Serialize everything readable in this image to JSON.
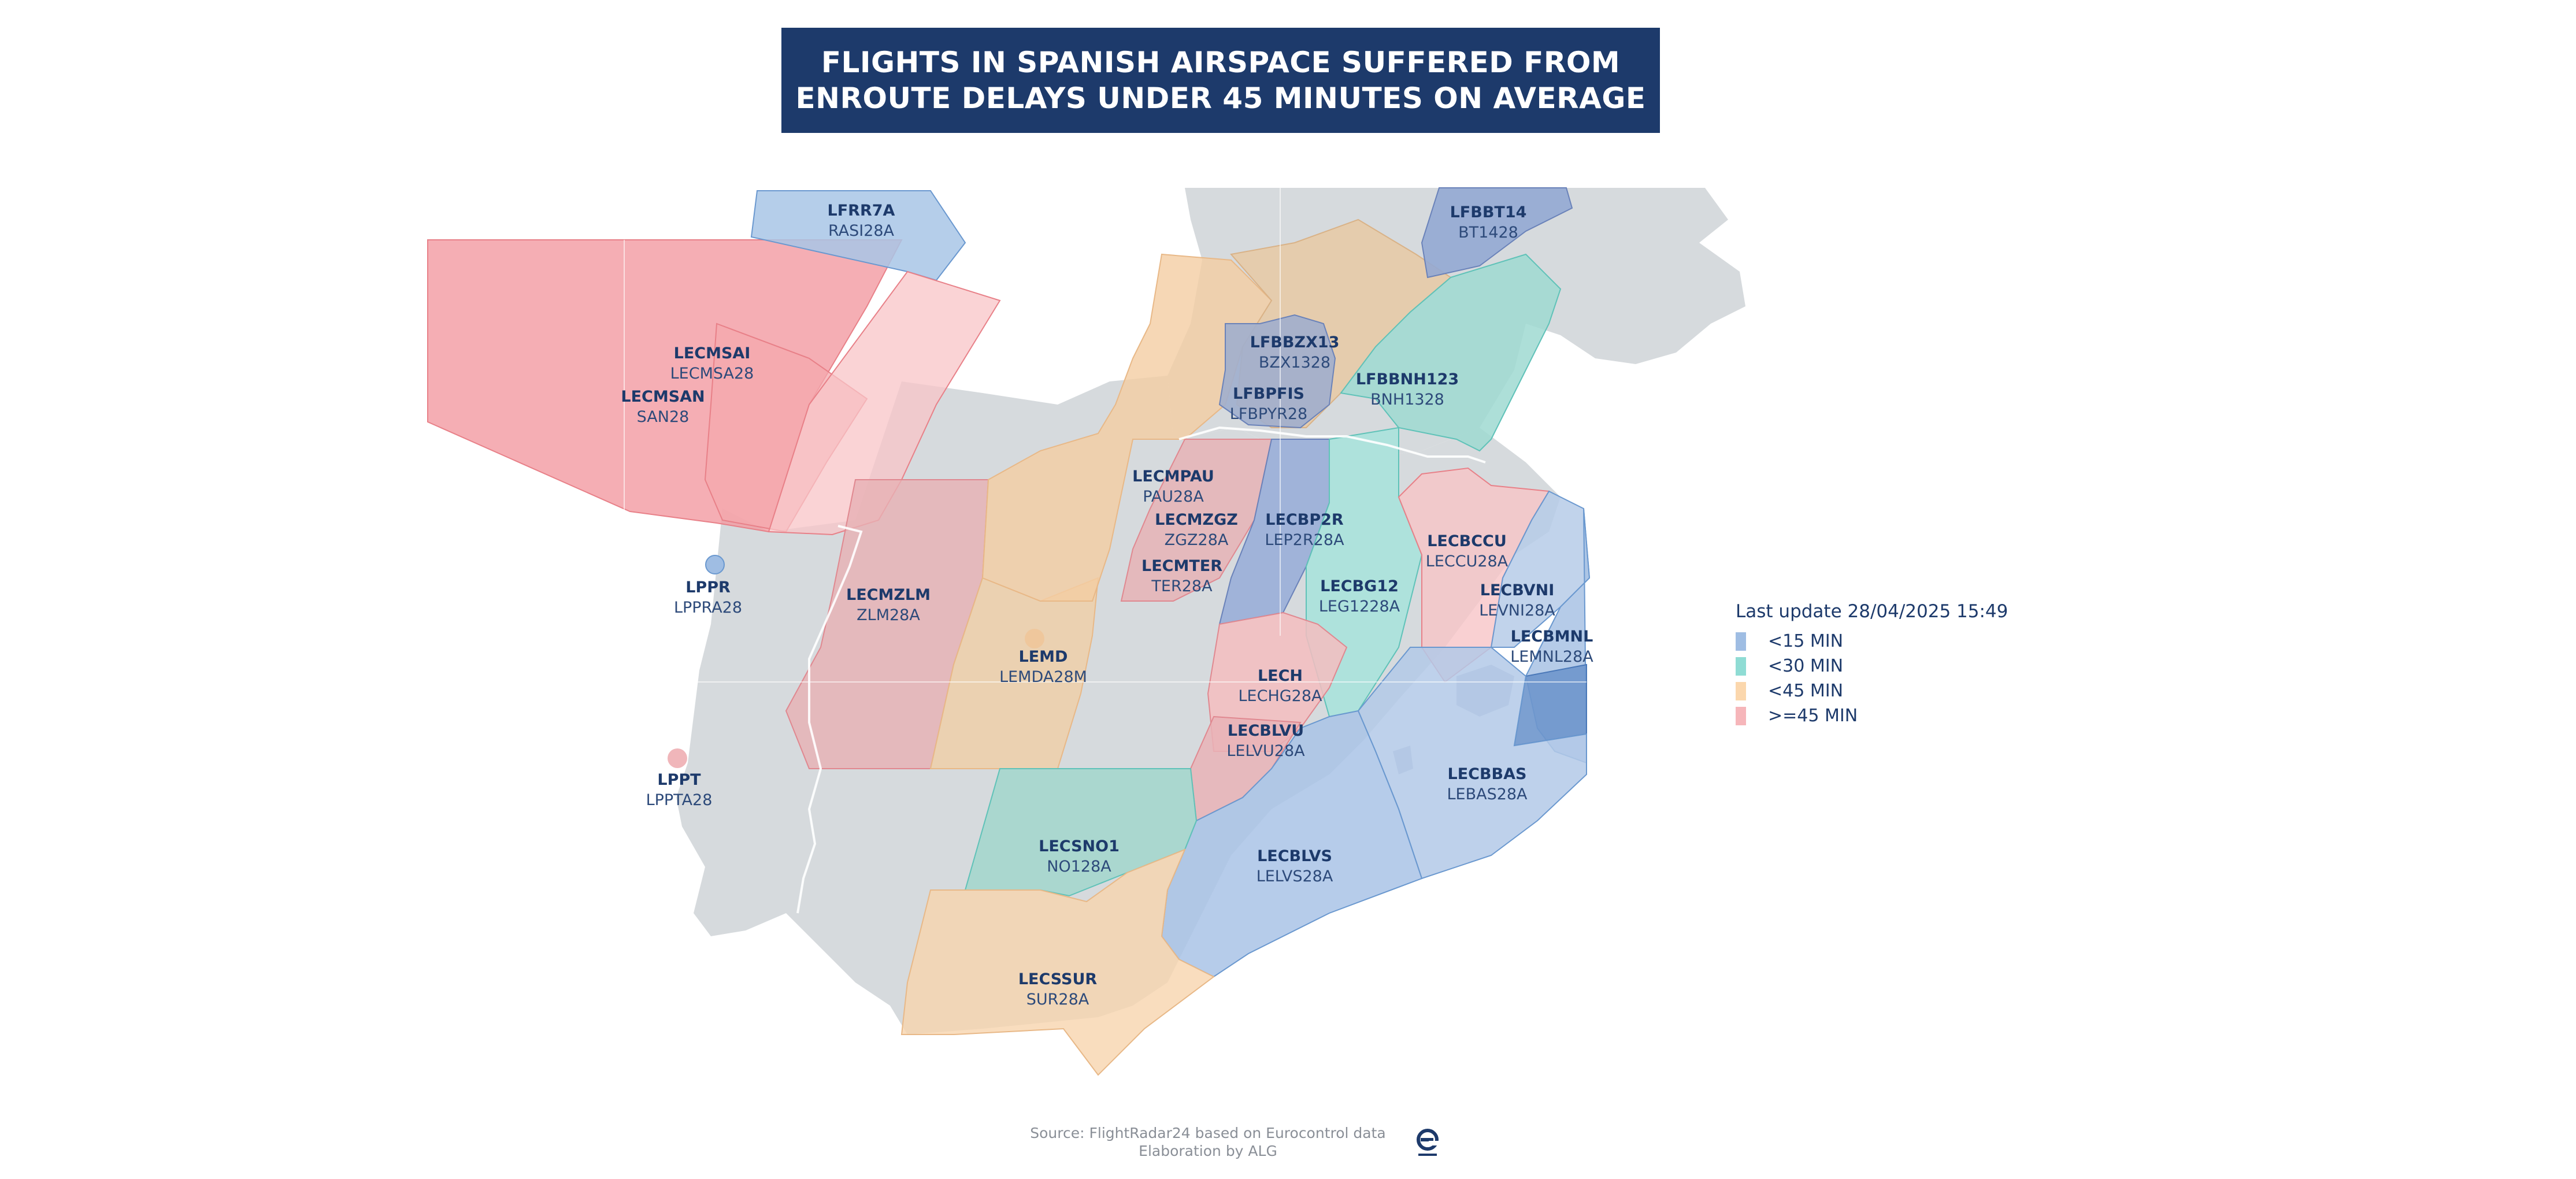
{
  "title": {
    "line1": "FLIGHTS IN SPANISH AIRSPACE SUFFERED FROM",
    "line2": "ENROUTE DELAYS UNDER 45 MINUTES ON AVERAGE"
  },
  "legend": {
    "title": "Last update 28/04/2025 15:49",
    "items": [
      {
        "label": "<15 MIN",
        "color": "#9fbde3"
      },
      {
        "label": "<30 MIN",
        "color": "#8fdcd4"
      },
      {
        "label": "<45 MIN",
        "color": "#fbd7ad"
      },
      {
        "label": ">=45 MIN",
        "color": "#f6b6ba"
      }
    ]
  },
  "sectors": [
    {
      "code": "LFRR7A",
      "sub": "RASI28A",
      "category": "<15 MIN"
    },
    {
      "code": "LFBBT14",
      "sub": "BT1428",
      "category": "<15 MIN"
    },
    {
      "code": "LECMSAI",
      "sub": "LECMSA28",
      "category": ">=45 MIN"
    },
    {
      "code": "LECMSAN",
      "sub": "SAN28",
      "category": ">=45 MIN"
    },
    {
      "code": "LFBBZX13",
      "sub": "BZX1328",
      "category": "<15 MIN"
    },
    {
      "code": "LFBPFIS",
      "sub": "LFBPYR28",
      "category": "<15 MIN"
    },
    {
      "code": "LFBBNH123",
      "sub": "BNH1328",
      "category": "<30 MIN"
    },
    {
      "code": "LECMPAU",
      "sub": "PAU28A",
      "category": "<45 MIN"
    },
    {
      "code": "LECMZGZ",
      "sub": "ZGZ28A",
      "category": ">=45 MIN"
    },
    {
      "code": "LECMTER",
      "sub": "TER28A",
      "category": ">=45 MIN"
    },
    {
      "code": "LECBP2R",
      "sub": "LEP2R28A",
      "category": "<15 MIN"
    },
    {
      "code": "LECBCCU",
      "sub": "LECCU28A",
      "category": ">=45 MIN"
    },
    {
      "code": "LPPR",
      "sub": "LPPRA28",
      "category": "<15 MIN"
    },
    {
      "code": "LECMZLM",
      "sub": "ZLM28A",
      "category": ">=45 MIN"
    },
    {
      "code": "LECBG12",
      "sub": "LEG1228A",
      "category": "<30 MIN"
    },
    {
      "code": "LECBVNI",
      "sub": "LEVNI28A",
      "category": "<15 MIN"
    },
    {
      "code": "LECBMNL",
      "sub": "LEMNL28A",
      "category": "<15 MIN"
    },
    {
      "code": "LEMD",
      "sub": "LEMDA28M",
      "category": "<45 MIN"
    },
    {
      "code": "LECH",
      "sub": "LECHG28A",
      "category": ">=45 MIN"
    },
    {
      "code": "LECBLVU",
      "sub": "LELVU28A",
      "category": ">=45 MIN"
    },
    {
      "code": "LPPT",
      "sub": "LPPTA28",
      "category": ">=45 MIN"
    },
    {
      "code": "LECBBAS",
      "sub": "LEBAS28A",
      "category": "<15 MIN"
    },
    {
      "code": "LECSNO1",
      "sub": "NO128A",
      "category": "<30 MIN"
    },
    {
      "code": "LECBLVS",
      "sub": "LELVS28A",
      "category": "<15 MIN"
    },
    {
      "code": "LECSSUR",
      "sub": "SUR28A",
      "category": "<45 MIN"
    }
  ],
  "source": {
    "line1": "Source: FlightRadar24 based on Eurocontrol data",
    "line2": "Elaboration by ALG"
  },
  "logo_name": "eurocontrol-logo-icon"
}
